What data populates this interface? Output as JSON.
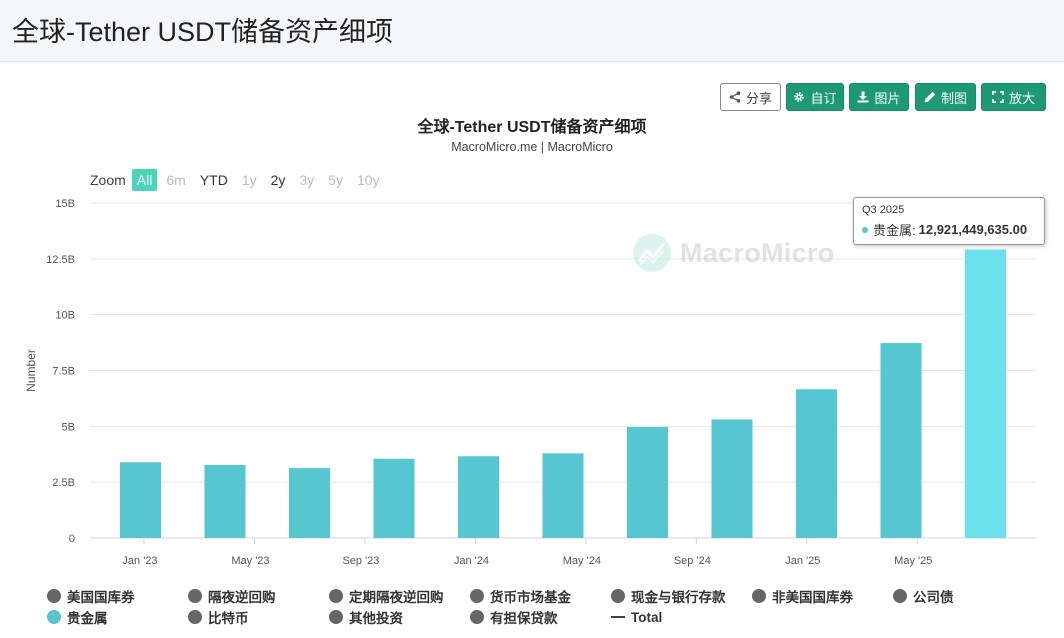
{
  "page": {
    "title": "全球-Tether USDT储备资产细项"
  },
  "toolbar": {
    "share_label": "分享",
    "customize_label": "自订",
    "image_label": "图片",
    "draw_label": "制图",
    "zoom_label": "放大"
  },
  "zoom": {
    "label": "Zoom",
    "options": [
      {
        "label": "All",
        "state": "active"
      },
      {
        "label": "6m",
        "state": "disabled"
      },
      {
        "label": "YTD",
        "state": "enabled"
      },
      {
        "label": "1y",
        "state": "disabled"
      },
      {
        "label": "2y",
        "state": "enabled"
      },
      {
        "label": "3y",
        "state": "disabled"
      },
      {
        "label": "5y",
        "state": "disabled"
      },
      {
        "label": "10y",
        "state": "disabled"
      }
    ]
  },
  "watermark": {
    "text": "MacroMicro"
  },
  "tooltip": {
    "period": "Q3 2025",
    "series": "贵金属:",
    "value": "12,921,449,635.00"
  },
  "colors": {
    "accent": "#1d9a74",
    "bar": "#56c6d1",
    "bar_highlight": "#6ce0ec",
    "legend_gray": "#666666"
  },
  "chart_data": {
    "type": "bar",
    "title": "全球-Tether USDT储备资产细项",
    "subtitle": "MacroMicro.me | MacroMicro",
    "ylabel": "Number",
    "xlabel": "",
    "ylim": [
      0,
      15
    ],
    "y_unit": "B",
    "y_ticks": [
      "0",
      "2.5B",
      "5B",
      "7.5B",
      "10B",
      "12.5B",
      "15B"
    ],
    "x_ticks": [
      "Jan '23",
      "May '23",
      "Sep '23",
      "Jan '24",
      "May '24",
      "Sep '24",
      "Jan '25",
      "May '25"
    ],
    "categories": [
      "Q1 2023",
      "Q2 2023",
      "Q3 2023",
      "Q4 2023",
      "Q1 2024",
      "Q2 2024",
      "Q3 2024",
      "Q4 2024",
      "Q1 2025",
      "Q2 2025",
      "Q3 2025"
    ],
    "series": [
      {
        "name": "贵金属",
        "values": [
          3.39,
          3.27,
          3.13,
          3.55,
          3.66,
          3.79,
          4.97,
          5.31,
          6.66,
          8.73,
          12.92
        ]
      }
    ],
    "highlight_index": 10,
    "grid": true,
    "legend_position": "bottom",
    "legend": [
      {
        "name": "美国国库券",
        "color": "#666666",
        "marker": "dot"
      },
      {
        "name": "隔夜逆回购",
        "color": "#666666",
        "marker": "dot"
      },
      {
        "name": "定期隔夜逆回购",
        "color": "#666666",
        "marker": "dot"
      },
      {
        "name": "货币市场基金",
        "color": "#666666",
        "marker": "dot"
      },
      {
        "name": "现金与银行存款",
        "color": "#666666",
        "marker": "dot"
      },
      {
        "name": "非美国国库券",
        "color": "#666666",
        "marker": "dot"
      },
      {
        "name": "公司债",
        "color": "#666666",
        "marker": "dot"
      },
      {
        "name": "贵金属",
        "color": "#56c6d1",
        "marker": "dot"
      },
      {
        "name": "比特币",
        "color": "#666666",
        "marker": "dot"
      },
      {
        "name": "其他投资",
        "color": "#666666",
        "marker": "dot"
      },
      {
        "name": "有担保贷款",
        "color": "#666666",
        "marker": "dot"
      },
      {
        "name": "Total",
        "color": "#444444",
        "marker": "line"
      }
    ]
  }
}
